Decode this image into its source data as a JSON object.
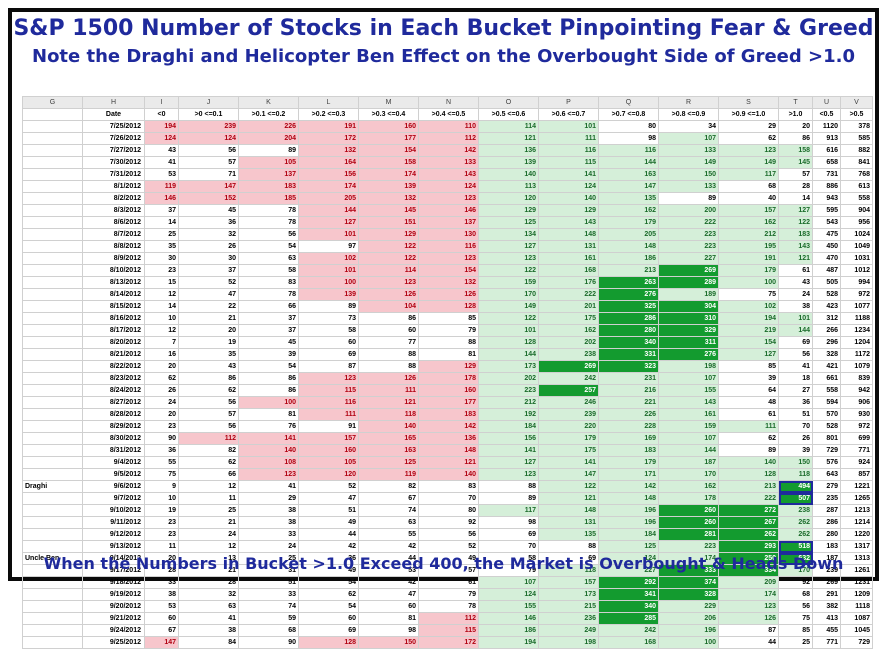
{
  "title": "S&P 1500 Number of Stocks in Each Bucket Pinpointing Fear & Greed",
  "subtitle": "Note the Draghi and Helicopter Ben Effect on the Overbought Side of Greed >1.0",
  "footer": "When the Numbers in Bucket >1.0 Exceed 400, the Market is Overbought & Heads Down",
  "colors": {
    "title": "#1f2a9c",
    "pink_fill": "#f7c6cc",
    "pink_text": "#b00010",
    "light_green": "#d5efd9",
    "dark_green": "#139b2f"
  },
  "chart_data": {
    "type": "table",
    "column_letters": [
      "G",
      "H",
      "I",
      "J",
      "K",
      "L",
      "M",
      "N",
      "O",
      "P",
      "Q",
      "R",
      "S",
      "T",
      "U",
      "V"
    ],
    "columns": [
      "",
      "Date",
      "<0",
      ">0 <=0.1",
      ">0.1 <=0.2",
      ">0.2 <=0.3",
      ">0.3 <=0.4",
      ">0.4 <=0.5",
      ">0.5 <=0.6",
      ">0.6 <=0.7",
      ">0.7 <=0.8",
      ">0.8 <=0.9",
      ">0.9 <=1.0",
      ">1.0",
      "<0.5",
      ">0.5"
    ],
    "rows": [
      {
        "label": "",
        "date": "7/25/2012",
        "values": [
          194,
          239,
          226,
          191,
          160,
          110,
          114,
          101,
          80,
          34,
          29,
          20,
          1120,
          378
        ]
      },
      {
        "label": "",
        "date": "7/26/2012",
        "values": [
          124,
          124,
          204,
          172,
          177,
          112,
          121,
          111,
          98,
          107,
          62,
          86,
          913,
          585
        ]
      },
      {
        "label": "",
        "date": "7/27/2012",
        "values": [
          43,
          56,
          89,
          132,
          154,
          142,
          136,
          116,
          116,
          133,
          123,
          158,
          616,
          882
        ]
      },
      {
        "label": "",
        "date": "7/30/2012",
        "values": [
          41,
          57,
          105,
          164,
          158,
          133,
          139,
          115,
          144,
          149,
          149,
          145,
          658,
          841
        ]
      },
      {
        "label": "",
        "date": "7/31/2012",
        "values": [
          53,
          71,
          137,
          156,
          174,
          143,
          140,
          141,
          163,
          150,
          117,
          57,
          731,
          768
        ]
      },
      {
        "label": "",
        "date": "8/1/2012",
        "values": [
          119,
          147,
          183,
          174,
          139,
          124,
          113,
          124,
          147,
          133,
          68,
          28,
          886,
          613
        ]
      },
      {
        "label": "",
        "date": "8/2/2012",
        "values": [
          146,
          152,
          185,
          205,
          132,
          123,
          120,
          140,
          135,
          89,
          40,
          14,
          943,
          558
        ]
      },
      {
        "label": "",
        "date": "8/3/2012",
        "values": [
          37,
          45,
          78,
          144,
          145,
          146,
          129,
          129,
          162,
          200,
          157,
          127,
          595,
          904
        ]
      },
      {
        "label": "",
        "date": "8/6/2012",
        "values": [
          14,
          36,
          78,
          127,
          151,
          137,
          125,
          143,
          179,
          222,
          162,
          122,
          543,
          956
        ]
      },
      {
        "label": "",
        "date": "8/7/2012",
        "values": [
          25,
          32,
          56,
          101,
          129,
          130,
          134,
          148,
          205,
          223,
          212,
          183,
          475,
          1024
        ]
      },
      {
        "label": "",
        "date": "8/8/2012",
        "values": [
          35,
          26,
          54,
          97,
          122,
          116,
          127,
          131,
          148,
          223,
          195,
          143,
          450,
          1049
        ]
      },
      {
        "label": "",
        "date": "8/9/2012",
        "values": [
          30,
          30,
          63,
          102,
          122,
          123,
          123,
          161,
          186,
          227,
          191,
          121,
          470,
          1031
        ]
      },
      {
        "label": "",
        "date": "8/10/2012",
        "values": [
          23,
          37,
          58,
          101,
          114,
          154,
          122,
          168,
          213,
          269,
          179,
          61,
          487,
          1012
        ]
      },
      {
        "label": "",
        "date": "8/13/2012",
        "values": [
          15,
          52,
          83,
          100,
          123,
          132,
          159,
          176,
          263,
          289,
          100,
          43,
          505,
          994
        ]
      },
      {
        "label": "",
        "date": "8/14/2012",
        "values": [
          12,
          47,
          78,
          139,
          126,
          126,
          170,
          222,
          276,
          189,
          75,
          24,
          528,
          972
        ]
      },
      {
        "label": "",
        "date": "8/15/2012",
        "values": [
          14,
          22,
          66,
          89,
          104,
          128,
          149,
          201,
          325,
          304,
          102,
          38,
          423,
          1077
        ]
      },
      {
        "label": "",
        "date": "8/16/2012",
        "values": [
          10,
          21,
          37,
          73,
          86,
          85,
          122,
          175,
          286,
          310,
          194,
          101,
          312,
          1188
        ]
      },
      {
        "label": "",
        "date": "8/17/2012",
        "values": [
          12,
          20,
          37,
          58,
          60,
          79,
          101,
          162,
          280,
          329,
          219,
          144,
          266,
          1234
        ]
      },
      {
        "label": "",
        "date": "8/20/2012",
        "values": [
          7,
          19,
          45,
          60,
          77,
          88,
          128,
          202,
          340,
          311,
          154,
          69,
          296,
          1204
        ]
      },
      {
        "label": "",
        "date": "8/21/2012",
        "values": [
          16,
          35,
          39,
          69,
          88,
          81,
          144,
          238,
          331,
          276,
          127,
          56,
          328,
          1172
        ]
      },
      {
        "label": "",
        "date": "8/22/2012",
        "values": [
          20,
          43,
          54,
          87,
          88,
          129,
          173,
          269,
          323,
          198,
          85,
          41,
          421,
          1079
        ]
      },
      {
        "label": "",
        "date": "8/23/2012",
        "values": [
          62,
          86,
          86,
          123,
          126,
          178,
          202,
          242,
          231,
          107,
          39,
          18,
          661,
          839
        ]
      },
      {
        "label": "",
        "date": "8/24/2012",
        "values": [
          26,
          62,
          86,
          115,
          111,
          160,
          223,
          257,
          216,
          155,
          64,
          27,
          558,
          942
        ]
      },
      {
        "label": "",
        "date": "8/27/2012",
        "values": [
          24,
          56,
          100,
          116,
          121,
          177,
          212,
          246,
          221,
          143,
          48,
          36,
          594,
          906
        ]
      },
      {
        "label": "",
        "date": "8/28/2012",
        "values": [
          20,
          57,
          81,
          111,
          118,
          183,
          192,
          239,
          226,
          161,
          61,
          51,
          570,
          930
        ]
      },
      {
        "label": "",
        "date": "8/29/2012",
        "values": [
          23,
          56,
          76,
          91,
          140,
          142,
          184,
          220,
          228,
          159,
          111,
          70,
          528,
          972
        ]
      },
      {
        "label": "",
        "date": "8/30/2012",
        "values": [
          90,
          112,
          141,
          157,
          165,
          136,
          156,
          179,
          169,
          107,
          62,
          26,
          801,
          699
        ]
      },
      {
        "label": "",
        "date": "8/31/2012",
        "values": [
          36,
          82,
          140,
          160,
          163,
          148,
          141,
          175,
          183,
          144,
          89,
          39,
          729,
          771
        ]
      },
      {
        "label": "",
        "date": "9/4/2012",
        "values": [
          55,
          62,
          108,
          105,
          125,
          121,
          127,
          141,
          179,
          187,
          140,
          150,
          576,
          924
        ]
      },
      {
        "label": "",
        "date": "9/5/2012",
        "values": [
          75,
          66,
          123,
          120,
          119,
          140,
          123,
          147,
          171,
          170,
          128,
          118,
          643,
          857
        ]
      },
      {
        "label": "Draghi",
        "date": "9/6/2012",
        "values": [
          9,
          12,
          41,
          52,
          82,
          83,
          88,
          122,
          142,
          162,
          213,
          494,
          279,
          1221
        ]
      },
      {
        "label": "",
        "date": "9/7/2012",
        "values": [
          10,
          11,
          29,
          47,
          67,
          70,
          89,
          121,
          148,
          178,
          222,
          507,
          235,
          1265
        ]
      },
      {
        "label": "",
        "date": "9/10/2012",
        "values": [
          19,
          25,
          38,
          51,
          74,
          80,
          117,
          148,
          196,
          260,
          272,
          238,
          287,
          1213
        ]
      },
      {
        "label": "",
        "date": "9/11/2012",
        "values": [
          23,
          21,
          38,
          49,
          63,
          92,
          98,
          131,
          196,
          260,
          267,
          262,
          286,
          1214
        ]
      },
      {
        "label": "",
        "date": "9/12/2012",
        "values": [
          23,
          24,
          33,
          44,
          55,
          56,
          69,
          135,
          184,
          281,
          262,
          262,
          280,
          1220
        ]
      },
      {
        "label": "",
        "date": "9/13/2012",
        "values": [
          11,
          12,
          24,
          42,
          42,
          52,
          70,
          88,
          125,
          223,
          293,
          518,
          183,
          1317
        ]
      },
      {
        "label": "Uncle Ben",
        "date": "9/14/2012",
        "values": [
          20,
          13,
          25,
          36,
          44,
          49,
          58,
          69,
          124,
          174,
          250,
          632,
          187,
          1313
        ]
      },
      {
        "label": "",
        "date": "9/17/2012",
        "values": [
          28,
          21,
          31,
          49,
          53,
          57,
          79,
          118,
          227,
          333,
          334,
          170,
          239,
          1261
        ]
      },
      {
        "label": "",
        "date": "9/18/2012",
        "values": [
          33,
          28,
          51,
          54,
          42,
          61,
          107,
          157,
          292,
          374,
          209,
          92,
          269,
          1231
        ]
      },
      {
        "label": "",
        "date": "9/19/2012",
        "values": [
          38,
          32,
          33,
          62,
          47,
          79,
          124,
          173,
          341,
          328,
          174,
          68,
          291,
          1209
        ]
      },
      {
        "label": "",
        "date": "9/20/2012",
        "values": [
          53,
          63,
          74,
          54,
          60,
          78,
          155,
          215,
          340,
          229,
          123,
          56,
          382,
          1118
        ]
      },
      {
        "label": "",
        "date": "9/21/2012",
        "values": [
          60,
          41,
          59,
          60,
          81,
          112,
          146,
          236,
          285,
          206,
          126,
          75,
          413,
          1087
        ]
      },
      {
        "label": "",
        "date": "9/24/2012",
        "values": [
          67,
          38,
          68,
          69,
          98,
          115,
          186,
          249,
          242,
          196,
          87,
          85,
          455,
          1045
        ]
      },
      {
        "label": "",
        "date": "9/25/2012",
        "values": [
          147,
          84,
          90,
          128,
          150,
          172,
          194,
          198,
          168,
          100,
          44,
          25,
          771,
          729
        ]
      }
    ]
  }
}
